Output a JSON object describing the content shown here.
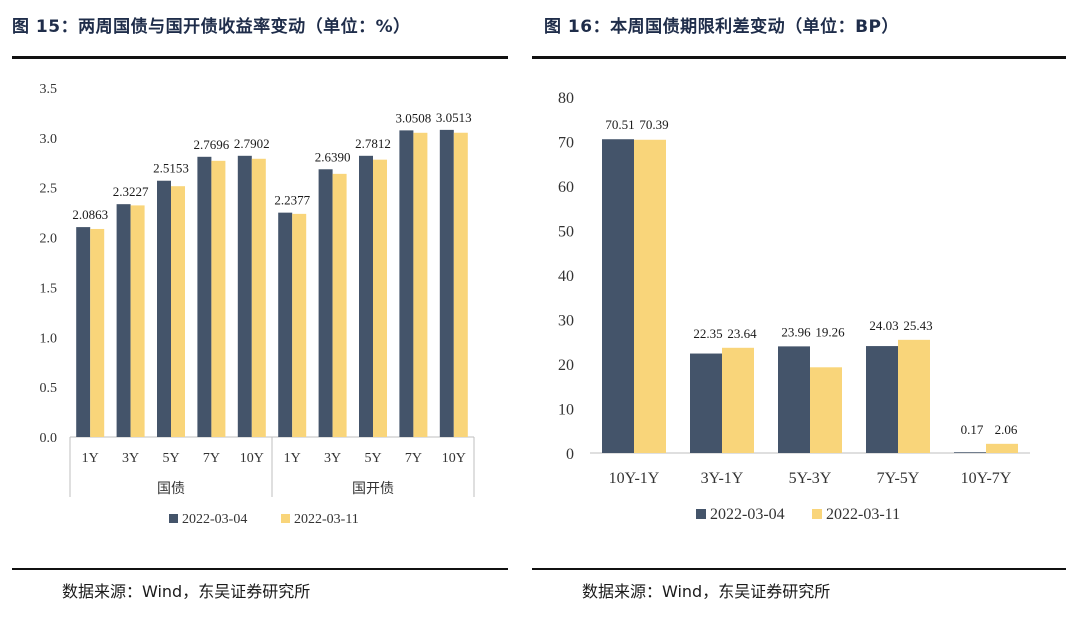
{
  "colors": {
    "series1": "#44546a",
    "series2": "#f9d57a",
    "axis": "#bfbfbf",
    "text": "#333333"
  },
  "left": {
    "title": "图 15：两周国债与国开债收益率变动（单位：%）",
    "source": "数据来源：Wind，东吴证券研究所"
  },
  "right": {
    "title": "图 16：本周国债期限利差变动（单位：BP）",
    "source": "数据来源：Wind，东吴证券研究所"
  },
  "chart_data": [
    {
      "type": "bar",
      "title": "两周国债与国开债收益率变动（单位：%）",
      "categories": [
        "1Y",
        "3Y",
        "5Y",
        "7Y",
        "10Y",
        "1Y",
        "3Y",
        "5Y",
        "7Y",
        "10Y"
      ],
      "groups": [
        {
          "label": "国债",
          "size": 5
        },
        {
          "label": "国开债",
          "size": 5
        }
      ],
      "series": [
        {
          "name": "2022-03-04",
          "values": [
            2.105,
            2.335,
            2.57,
            2.81,
            2.82,
            2.25,
            2.685,
            2.82,
            3.075,
            3.08
          ]
        },
        {
          "name": "2022-03-11",
          "values": [
            2.0863,
            2.3227,
            2.5153,
            2.7696,
            2.7902,
            2.2377,
            2.639,
            2.7812,
            3.0508,
            3.0513
          ]
        }
      ],
      "data_labels": [
        "2.0863",
        "2.3227",
        "2.5153",
        "2.7696",
        "2.7902",
        "2.2377",
        "2.6390",
        "2.7812",
        "3.0508",
        "3.0513"
      ],
      "label_series": 1,
      "ylim": [
        0,
        3.5
      ],
      "yticks": [
        "0.0",
        "0.5",
        "1.0",
        "1.5",
        "2.0",
        "2.5",
        "3.0",
        "3.5"
      ],
      "xlabel": "",
      "ylabel": "",
      "legend_position": "bottom"
    },
    {
      "type": "bar",
      "title": "本周国债期限利差变动（单位：BP）",
      "categories": [
        "10Y-1Y",
        "3Y-1Y",
        "5Y-3Y",
        "7Y-5Y",
        "10Y-7Y"
      ],
      "series": [
        {
          "name": "2022-03-04",
          "values": [
            70.51,
            22.35,
            23.96,
            24.03,
            0.17
          ]
        },
        {
          "name": "2022-03-11",
          "values": [
            70.39,
            23.64,
            19.26,
            25.43,
            2.06
          ]
        }
      ],
      "data_labels_series1": [
        "70.51",
        "22.35",
        "23.96",
        "24.03",
        "0.17"
      ],
      "data_labels_series2": [
        "70.39",
        "23.64",
        "19.26",
        "25.43",
        "2.06"
      ],
      "ylim": [
        0,
        80
      ],
      "yticks": [
        "0",
        "10",
        "20",
        "30",
        "40",
        "50",
        "60",
        "70",
        "80"
      ],
      "xlabel": "",
      "ylabel": "",
      "legend_position": "bottom"
    }
  ]
}
